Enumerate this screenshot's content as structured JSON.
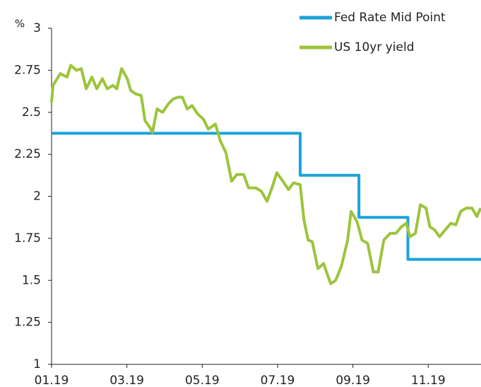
{
  "chart_data": {
    "type": "line",
    "ylabel": "%",
    "xlim": [
      0,
      11.4
    ],
    "xticks": [
      {
        "value": 0,
        "label": "01.19"
      },
      {
        "value": 2,
        "label": "03.19"
      },
      {
        "value": 4,
        "label": "05.19"
      },
      {
        "value": 6,
        "label": "07.19"
      },
      {
        "value": 8,
        "label": "09.19"
      },
      {
        "value": 10,
        "label": "11.19"
      }
    ],
    "ylim": [
      1,
      3
    ],
    "yticks": [
      1,
      1.25,
      1.5,
      1.75,
      2,
      2.25,
      2.5,
      2.75,
      3
    ],
    "legend": "top-right",
    "series": [
      {
        "name": "Fed Rate Mid Point",
        "color": "#1ba3dc",
        "x": [
          0,
          6.6,
          6.6,
          8.16,
          8.16,
          9.46,
          9.46,
          11.4
        ],
        "values": [
          2.375,
          2.375,
          2.125,
          2.125,
          1.875,
          1.875,
          1.625,
          1.625
        ]
      },
      {
        "name": "US 10yr yield",
        "color": "#9cc43c",
        "x": [
          0,
          0.04,
          0.23,
          0.41,
          0.51,
          0.66,
          0.79,
          0.92,
          1.07,
          1.2,
          1.35,
          1.48,
          1.63,
          1.73,
          1.86,
          2.01,
          2.1,
          2.23,
          2.38,
          2.48,
          2.61,
          2.68,
          2.8,
          2.95,
          3.1,
          3.23,
          3.36,
          3.47,
          3.6,
          3.73,
          3.88,
          4.03,
          4.16,
          4.35,
          4.48,
          4.63,
          4.78,
          4.92,
          5.1,
          5.23,
          5.42,
          5.57,
          5.72,
          5.85,
          5.98,
          6.14,
          6.29,
          6.42,
          6.6,
          6.7,
          6.81,
          6.92,
          7.07,
          7.22,
          7.3,
          7.41,
          7.54,
          7.69,
          7.86,
          7.95,
          8.11,
          8.24,
          8.39,
          8.54,
          8.67,
          8.82,
          8.99,
          9.14,
          9.29,
          9.42,
          9.51,
          9.66,
          9.79,
          9.94,
          10.04,
          10.17,
          10.3,
          10.45,
          10.6,
          10.73,
          10.86,
          11.01,
          11.16,
          11.29,
          11.39
        ],
        "values": [
          2.56,
          2.66,
          2.73,
          2.71,
          2.78,
          2.75,
          2.76,
          2.64,
          2.71,
          2.64,
          2.7,
          2.64,
          2.66,
          2.64,
          2.76,
          2.7,
          2.63,
          2.61,
          2.6,
          2.45,
          2.41,
          2.38,
          2.52,
          2.5,
          2.55,
          2.58,
          2.59,
          2.59,
          2.52,
          2.54,
          2.49,
          2.46,
          2.4,
          2.43,
          2.33,
          2.26,
          2.09,
          2.13,
          2.13,
          2.05,
          2.05,
          2.03,
          1.97,
          2.05,
          2.14,
          2.09,
          2.04,
          2.08,
          2.07,
          1.86,
          1.74,
          1.73,
          1.57,
          1.6,
          1.55,
          1.48,
          1.5,
          1.58,
          1.74,
          1.91,
          1.85,
          1.74,
          1.72,
          1.55,
          1.55,
          1.74,
          1.78,
          1.78,
          1.82,
          1.84,
          1.76,
          1.78,
          1.95,
          1.93,
          1.82,
          1.8,
          1.76,
          1.8,
          1.84,
          1.83,
          1.91,
          1.93,
          1.93,
          1.88,
          1.93
        ]
      }
    ]
  }
}
